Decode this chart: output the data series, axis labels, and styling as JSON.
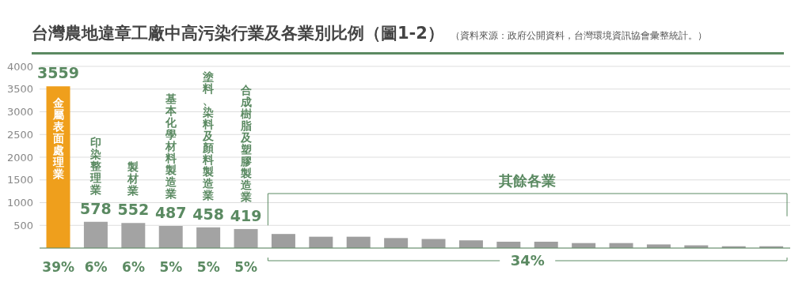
{
  "chart_data": {
    "type": "bar",
    "title": "台灣農地違章工廠中高污染行業及各業別比例（圖1-2）",
    "subtitle": "（資料來源：政府公開資料，台灣環境資訊協會彙整統計。）",
    "categories": [
      "金屬表面處理業",
      "印染整理業",
      "製材業",
      "基本化學材料製造業",
      "塗料、染料及顏料製造業",
      "合成樹脂及塑膠製造業",
      null,
      null,
      null,
      null,
      null,
      null,
      null,
      null,
      null,
      null,
      null,
      null,
      null,
      null
    ],
    "values": [
      3559,
      578,
      552,
      487,
      458,
      419,
      310,
      250,
      250,
      220,
      200,
      170,
      140,
      140,
      110,
      110,
      80,
      60,
      40,
      40
    ],
    "value_labels": [
      "3559",
      "578",
      "552",
      "487",
      "458",
      "419",
      null,
      null,
      null,
      null,
      null,
      null,
      null,
      null,
      null,
      null,
      null,
      null,
      null,
      null
    ],
    "colors": [
      "#ef9f1c",
      "#a3a3a3",
      "#a3a3a3",
      "#a3a3a3",
      "#a3a3a3",
      "#a3a3a3",
      "#9e9e9e",
      "#9e9e9e",
      "#9e9e9e",
      "#9e9e9e",
      "#9e9e9e",
      "#9e9e9e",
      "#9e9e9e",
      "#9e9e9e",
      "#9e9e9e",
      "#9e9e9e",
      "#9e9e9e",
      "#9e9e9e",
      "#9e9e9e",
      "#9e9e9e"
    ],
    "ylim": [
      0,
      4000
    ],
    "yticks": [
      500,
      1000,
      1500,
      2000,
      2500,
      3000,
      3500,
      4000
    ],
    "grid": "y",
    "annotations": [
      "39%",
      "6%",
      "6%",
      "5%",
      "5%",
      "5%",
      "其餘各業",
      "34%"
    ]
  }
}
